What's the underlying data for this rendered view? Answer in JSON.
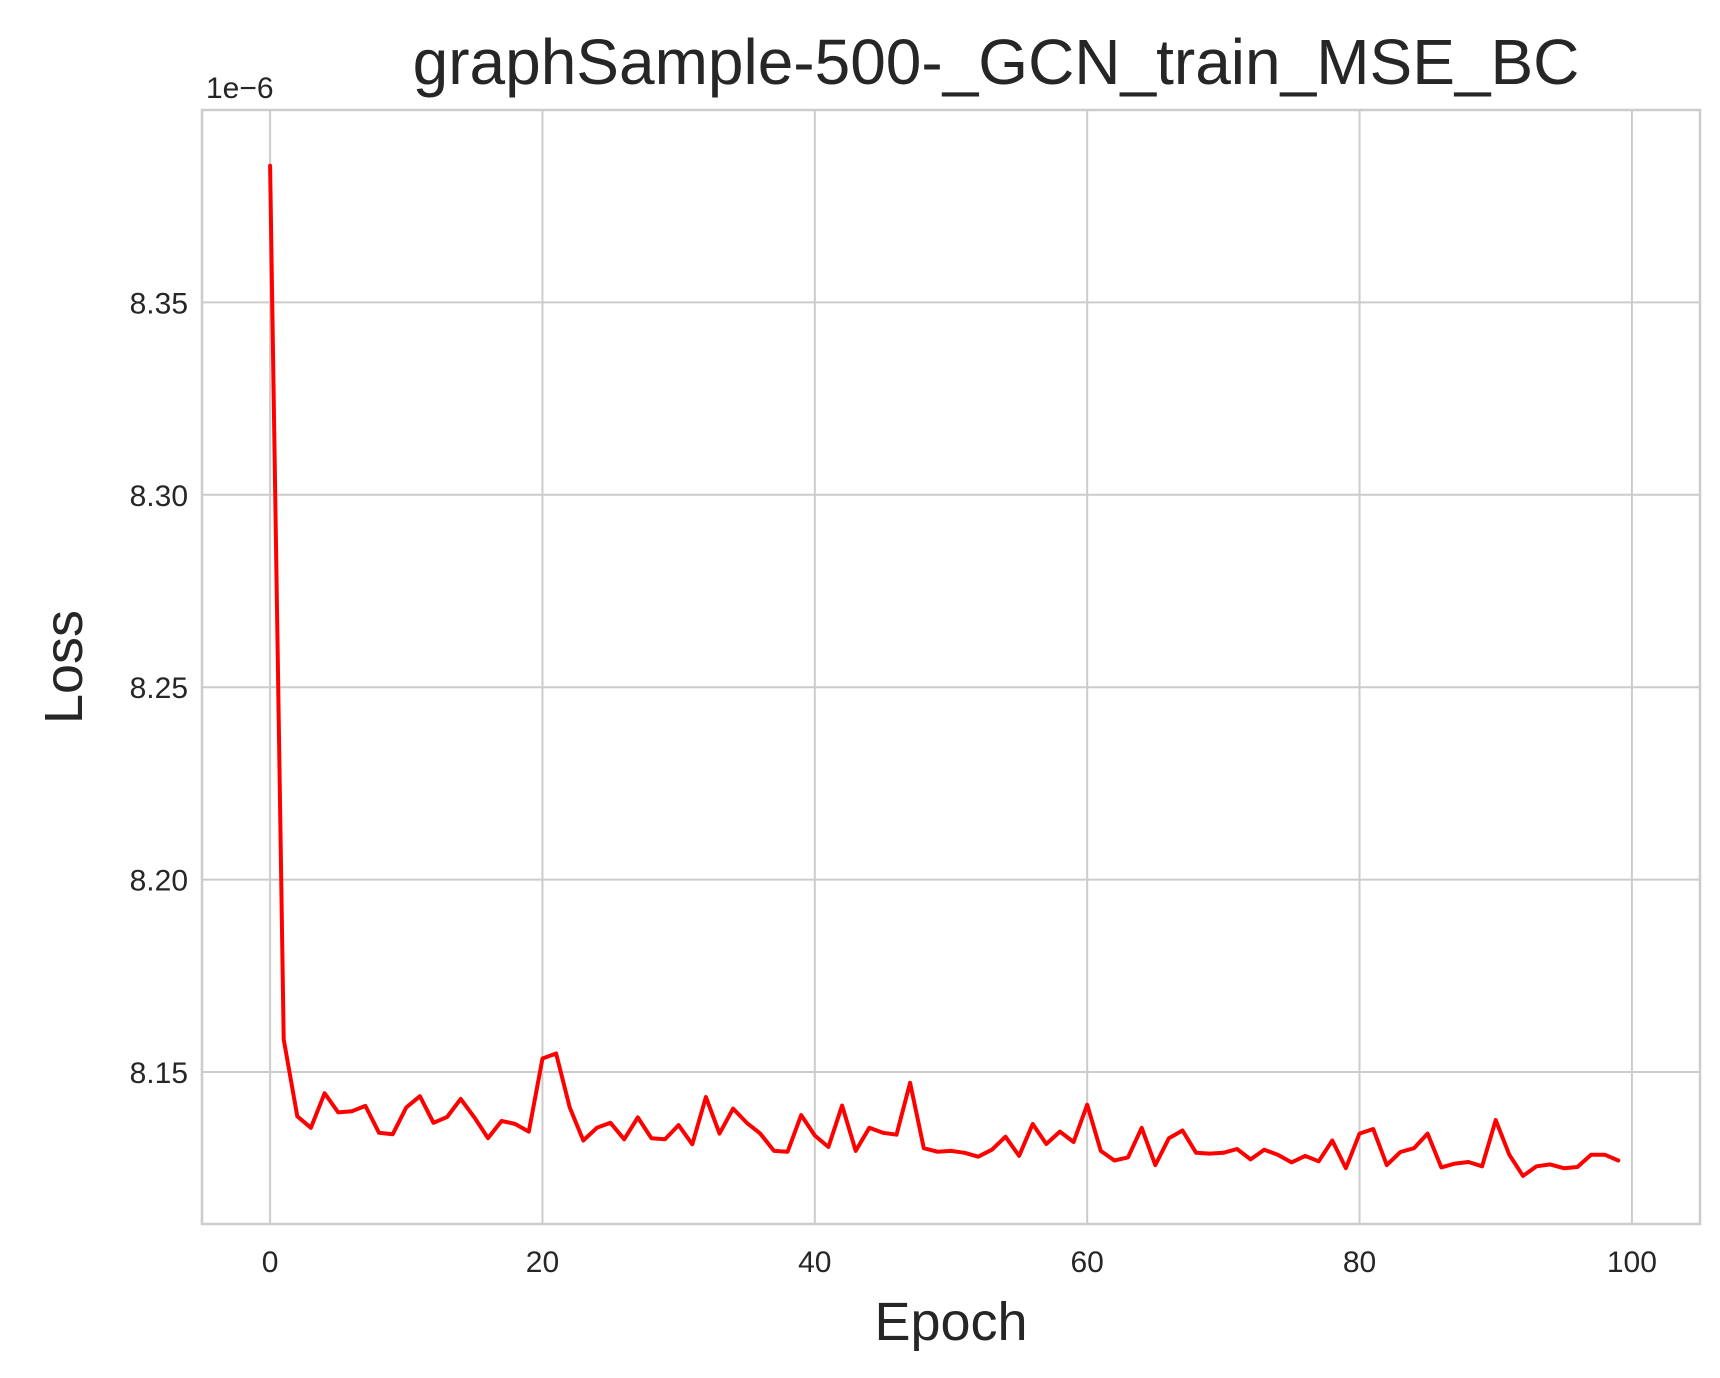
{
  "chart_data": {
    "type": "line",
    "title": "graphSample-500-_GCN_train_MSE_BC",
    "xlabel": "Epoch",
    "ylabel": "Loss",
    "y_offset_label": "1e−6",
    "xlim": [
      -5,
      105
    ],
    "ylim": [
      8.1105,
      8.4
    ],
    "x_ticks": [
      0,
      20,
      40,
      60,
      80,
      100
    ],
    "x_tick_labels": [
      "0",
      "20",
      "40",
      "60",
      "80",
      "100"
    ],
    "y_ticks": [
      8.15,
      8.2,
      8.25,
      8.3,
      8.35
    ],
    "y_tick_labels": [
      "8.15",
      "8.20",
      "8.25",
      "8.30",
      "8.35"
    ],
    "grid": true,
    "series": [
      {
        "color": "#ff0000",
        "x": [
          0,
          1,
          2,
          3,
          4,
          5,
          6,
          7,
          8,
          9,
          10,
          11,
          12,
          13,
          14,
          15,
          16,
          17,
          18,
          19,
          20,
          21,
          22,
          23,
          24,
          25,
          26,
          27,
          28,
          29,
          30,
          31,
          32,
          33,
          34,
          35,
          36,
          37,
          38,
          39,
          40,
          41,
          42,
          43,
          44,
          45,
          46,
          47,
          48,
          49,
          50,
          51,
          52,
          53,
          54,
          55,
          56,
          57,
          58,
          59,
          60,
          61,
          62,
          63,
          64,
          65,
          66,
          67,
          68,
          69,
          70,
          71,
          72,
          73,
          74,
          75,
          76,
          77,
          78,
          79,
          80,
          81,
          82,
          83,
          84,
          85,
          86,
          87,
          88,
          89,
          90,
          91,
          92,
          93,
          94,
          95,
          96,
          97,
          98,
          99
        ],
        "values": [
          8.3855,
          8.1585,
          8.1385,
          8.1355,
          8.1445,
          8.1395,
          8.1398,
          8.1412,
          8.1342,
          8.1338,
          8.1408,
          8.1437,
          8.1368,
          8.1383,
          8.143,
          8.1382,
          8.1328,
          8.1373,
          8.1365,
          8.1345,
          8.1535,
          8.1548,
          8.1408,
          8.1322,
          8.1355,
          8.1368,
          8.1325,
          8.1382,
          8.1328,
          8.1325,
          8.1362,
          8.1312,
          8.1435,
          8.134,
          8.1405,
          8.1368,
          8.134,
          8.1295,
          8.1293,
          8.1388,
          8.1335,
          8.1305,
          8.1413,
          8.1295,
          8.1355,
          8.1342,
          8.1337,
          8.1472,
          8.1302,
          8.1293,
          8.1295,
          8.129,
          8.128,
          8.1298,
          8.1332,
          8.1282,
          8.1365,
          8.1313,
          8.1345,
          8.1318,
          8.1415,
          8.1295,
          8.127,
          8.1278,
          8.1355,
          8.1258,
          8.1328,
          8.1348,
          8.129,
          8.1288,
          8.129,
          8.13,
          8.1273,
          8.1298,
          8.1285,
          8.1265,
          8.1282,
          8.1268,
          8.1322,
          8.125,
          8.134,
          8.1352,
          8.1258,
          8.1292,
          8.1302,
          8.134,
          8.1252,
          8.1262,
          8.1266,
          8.1255,
          8.1375,
          8.1285,
          8.123,
          8.1255,
          8.126,
          8.125,
          8.1253,
          8.1285,
          8.1285,
          8.127
        ]
      }
    ]
  }
}
